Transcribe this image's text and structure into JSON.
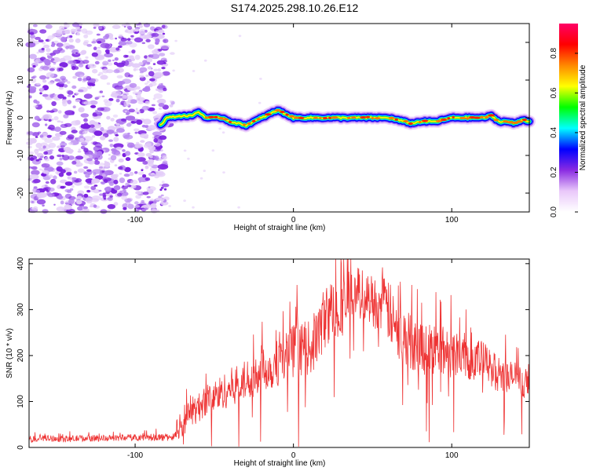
{
  "title": "S174.2025.298.10.26.E12",
  "chart_data": [
    {
      "type": "heatmap",
      "name": "spectrogram",
      "xlabel": "Height of straight line (km)",
      "ylabel": "Frequency (Hz)",
      "xlim": [
        -167,
        149
      ],
      "ylim": [
        -25,
        25
      ],
      "xticks": [
        -100,
        0,
        100
      ],
      "yticks": [
        -20,
        -10,
        0,
        10,
        20
      ],
      "noise_region_x": [
        -167,
        -80
      ],
      "ridge_start_x": -84,
      "ridge": {
        "x": [
          -84,
          -80,
          -75,
          -70,
          -65,
          -60,
          -55,
          -50,
          -45,
          -40,
          -35,
          -30,
          -25,
          -20,
          -15,
          -10,
          -5,
          0,
          10,
          20,
          30,
          40,
          50,
          60,
          70,
          75,
          80,
          85,
          90,
          95,
          100,
          105,
          110,
          115,
          120,
          125,
          130,
          135,
          140,
          145,
          149
        ],
        "y": [
          -2,
          0,
          0.3,
          0.5,
          0.5,
          1.5,
          0,
          0,
          0,
          -1,
          -1.5,
          -2,
          -1,
          0,
          1,
          2,
          1,
          0,
          0,
          0,
          0,
          0,
          0,
          0,
          -1,
          -1.5,
          -1,
          -1,
          -1,
          -0.5,
          0,
          0,
          0,
          0,
          0,
          0.5,
          -1,
          -1,
          -1.5,
          -0.5,
          -1
        ]
      },
      "colorbar": {
        "label": "Normalized spectral amplitude",
        "ticks": [
          "0.0",
          "0.2",
          "0.4",
          "0.6",
          "0.8"
        ],
        "tick_values": [
          0.0,
          0.2,
          0.4,
          0.6,
          0.8
        ],
        "range": [
          0,
          0.95
        ],
        "colors": [
          "#ffffff",
          "#e9c8fa",
          "#8a2be2",
          "#0000ff",
          "#00ffff",
          "#00ff00",
          "#ffff00",
          "#ff8800",
          "#ff0000",
          "#ff0066"
        ]
      }
    },
    {
      "type": "line",
      "name": "snr",
      "xlabel": "Height of straight line (km)",
      "ylabel": "SNR (10 * v/v)",
      "xlim": [
        -167,
        149
      ],
      "ylim": [
        0,
        410
      ],
      "xticks": [
        -100,
        0,
        100
      ],
      "yticks": [
        0,
        100,
        200,
        300,
        400
      ],
      "color": "#ee3333",
      "series": [
        {
          "name": "SNR",
          "x": [
            -167,
            -155,
            -145,
            -135,
            -125,
            -115,
            -105,
            -95,
            -85,
            -80,
            -75,
            -70,
            -65,
            -60,
            -55,
            -50,
            -45,
            -40,
            -35,
            -30,
            -25,
            -20,
            -15,
            -10,
            -5,
            0,
            5,
            10,
            15,
            20,
            25,
            30,
            35,
            40,
            45,
            50,
            55,
            60,
            65,
            70,
            75,
            80,
            85,
            90,
            95,
            100,
            105,
            110,
            115,
            120,
            125,
            130,
            135,
            140,
            145,
            149
          ],
          "y": [
            18,
            20,
            18,
            20,
            20,
            20,
            22,
            22,
            22,
            22,
            24,
            45,
            80,
            85,
            105,
            110,
            120,
            130,
            140,
            145,
            160,
            175,
            170,
            185,
            200,
            210,
            215,
            215,
            240,
            285,
            300,
            300,
            325,
            340,
            330,
            320,
            310,
            300,
            250,
            240,
            230,
            220,
            215,
            215,
            210,
            205,
            210,
            195,
            190,
            190,
            170,
            160,
            150,
            155,
            140,
            125
          ],
          "noise_amplitude": [
            10,
            10,
            10,
            10,
            10,
            10,
            10,
            10,
            12,
            12,
            14,
            30,
            50,
            45,
            50,
            55,
            55,
            60,
            60,
            65,
            70,
            70,
            70,
            75,
            80,
            85,
            85,
            85,
            95,
            100,
            95,
            90,
            90,
            80,
            80,
            80,
            90,
            100,
            90,
            90,
            90,
            90,
            85,
            85,
            80,
            75,
            75,
            70,
            70,
            60,
            60,
            55,
            55,
            50,
            45,
            40
          ]
        }
      ]
    }
  ]
}
